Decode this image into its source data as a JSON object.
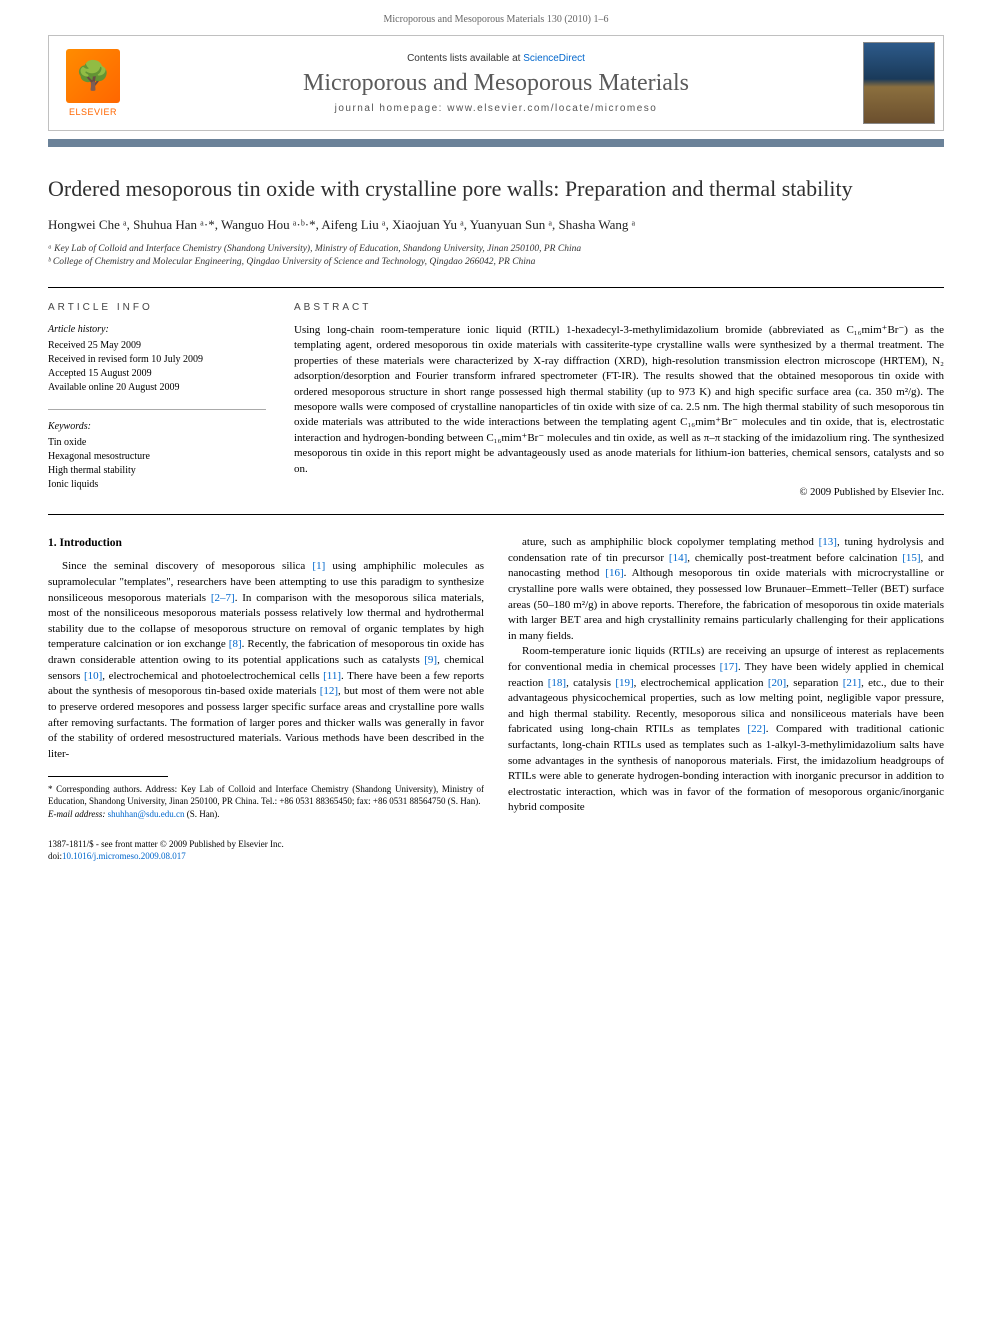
{
  "running_head": "Microporous and Mesoporous Materials 130 (2010) 1–6",
  "banner": {
    "publisher_label": "ELSEVIER",
    "contents_prefix": "Contents lists available at ",
    "contents_link": "ScienceDirect",
    "journal_name": "Microporous and Mesoporous Materials",
    "homepage_prefix": "journal homepage: ",
    "homepage_url": "www.elsevier.com/locate/micromeso"
  },
  "article": {
    "title": "Ordered mesoporous tin oxide with crystalline pore walls: Preparation and thermal stability",
    "authors_html": "Hongwei Che ᵃ, Shuhua Han ᵃ·*, Wanguo Hou ᵃ·ᵇ·*, Aifeng Liu ᵃ, Xiaojuan Yu ᵃ, Yuanyuan Sun ᵃ, Shasha Wang ᵃ",
    "affiliations": [
      "ᵃ Key Lab of Colloid and Interface Chemistry (Shandong University), Ministry of Education, Shandong University, Jinan 250100, PR China",
      "ᵇ College of Chemistry and Molecular Engineering, Qingdao University of Science and Technology, Qingdao 266042, PR China"
    ]
  },
  "info": {
    "heading": "ARTICLE INFO",
    "history_head": "Article history:",
    "history": [
      "Received 25 May 2009",
      "Received in revised form 10 July 2009",
      "Accepted 15 August 2009",
      "Available online 20 August 2009"
    ],
    "keywords_head": "Keywords:",
    "keywords": [
      "Tin oxide",
      "Hexagonal mesostructure",
      "High thermal stability",
      "Ionic liquids"
    ]
  },
  "abstract": {
    "heading": "ABSTRACT",
    "text": "Using long-chain room-temperature ionic liquid (RTIL) 1-hexadecyl-3-methylimidazolium bromide (abbreviated as C₁₆mim⁺Br⁻) as the templating agent, ordered mesoporous tin oxide materials with cassiterite-type crystalline walls were synthesized by a thermal treatment. The properties of these materials were characterized by X-ray diffraction (XRD), high-resolution transmission electron microscope (HRTEM), N₂ adsorption/desorption and Fourier transform infrared spectrometer (FT-IR). The results showed that the obtained mesoporous tin oxide with ordered mesoporous structure in short range possessed high thermal stability (up to 973 K) and high specific surface area (ca. 350 m²/g). The mesopore walls were composed of crystalline nanoparticles of tin oxide with size of ca. 2.5 nm. The high thermal stability of such mesoporous tin oxide materials was attributed to the wide interactions between the templating agent C₁₆mim⁺Br⁻ molecules and tin oxide, that is, electrostatic interaction and hydrogen-bonding between C₁₆mim⁺Br⁻ molecules and tin oxide, as well as π–π stacking of the imidazolium ring. The synthesized mesoporous tin oxide in this report might be advantageously used as anode materials for lithium-ion batteries, chemical sensors, catalysts and so on.",
    "copyright": "© 2009 Published by Elsevier Inc."
  },
  "body": {
    "section_head": "1. Introduction",
    "col1_p1": "Since the seminal discovery of mesoporous silica [1] using amphiphilic molecules as supramolecular \"templates\", researchers have been attempting to use this paradigm to synthesize nonsiliceous mesoporous materials [2–7]. In comparison with the mesoporous silica materials, most of the nonsiliceous mesoporous materials possess relatively low thermal and hydrothermal stability due to the collapse of mesoporous structure on removal of organic templates by high temperature calcination or ion exchange [8]. Recently, the fabrication of mesoporous tin oxide has drawn considerable attention owing to its potential applications such as catalysts [9], chemical sensors [10], electrochemical and photoelectrochemical cells [11]. There have been a few reports about the synthesis of mesoporous tin-based oxide materials [12], but most of them were not able to preserve ordered mesopores and possess larger specific surface areas and crystalline pore walls after removing surfactants. The formation of larger pores and thicker walls was generally in favor of the stability of ordered mesostructured materials. Various methods have been described in the liter-",
    "col2_p1": "ature, such as amphiphilic block copolymer templating method [13], tuning hydrolysis and condensation rate of tin precursor [14], chemically post-treatment before calcination [15], and nanocasting method [16]. Although mesoporous tin oxide materials with microcrystalline or crystalline pore walls were obtained, they possessed low Brunauer–Emmett–Teller (BET) surface areas (50–180 m²/g) in above reports. Therefore, the fabrication of mesoporous tin oxide materials with larger BET area and high crystallinity remains particularly challenging for their applications in many fields.",
    "col2_p2": "Room-temperature ionic liquids (RTILs) are receiving an upsurge of interest as replacements for conventional media in chemical processes [17]. They have been widely applied in chemical reaction [18], catalysis [19], electrochemical application [20], separation [21], etc., due to their advantageous physicochemical properties, such as low melting point, negligible vapor pressure, and high thermal stability. Recently, mesoporous silica and nonsiliceous materials have been fabricated using long-chain RTILs as templates [22]. Compared with traditional cationic surfactants, long-chain RTILs used as templates such as 1-alkyl-3-methylimidazolium salts have some advantages in the synthesis of nanoporous materials. First, the imidazolium headgroups of RTILs were able to generate hydrogen-bonding interaction with inorganic precursor in addition to electrostatic interaction, which was in favor of the formation of mesoporous organic/inorganic hybrid composite"
  },
  "footnote": {
    "corresponding": "* Corresponding authors. Address: Key Lab of Colloid and Interface Chemistry (Shandong University), Ministry of Education, Shandong University, Jinan 250100, PR China. Tel.: +86 0531 88365450; fax: +86 0531 88564750 (S. Han).",
    "email_label": "E-mail address: ",
    "email": "shuhhan@sdu.edu.cn",
    "email_suffix": " (S. Han)."
  },
  "footer": {
    "line1": "1387-1811/$ - see front matter © 2009 Published by Elsevier Inc.",
    "doi_label": "doi:",
    "doi": "10.1016/j.micromeso.2009.08.017"
  }
}
